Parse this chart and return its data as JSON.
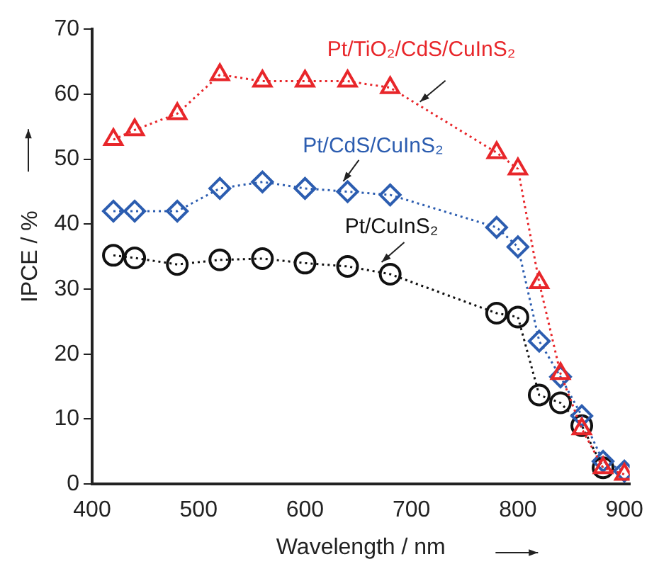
{
  "chart_data": {
    "type": "line",
    "xlabel": "Wavelength / nm",
    "ylabel": "IPCE / %",
    "x": [
      420,
      440,
      480,
      520,
      560,
      600,
      640,
      680,
      780,
      800,
      820,
      840,
      860,
      880,
      900
    ],
    "series": [
      {
        "name": "Pt/TiO₂/CdS/CuInS₂",
        "color": "#e8262a",
        "marker": "triangle",
        "values": [
          53,
          54.5,
          57,
          63,
          62,
          62,
          62,
          61,
          51,
          48.5,
          31,
          17,
          8.5,
          2.5,
          1.5
        ]
      },
      {
        "name": "Pt/CdS/CuInS₂",
        "color": "#2c5db0",
        "marker": "diamond",
        "values": [
          42,
          42,
          42,
          45.5,
          46.5,
          45.5,
          45,
          44.5,
          39.5,
          36.5,
          22,
          16.5,
          10.5,
          3.5,
          2
        ]
      },
      {
        "name": "Pt/CuInS₂",
        "color": "#111111",
        "marker": "circle",
        "values": [
          35.2,
          34.8,
          33.8,
          34.5,
          34.7,
          34,
          33.5,
          32.3,
          26.3,
          25.7,
          13.7,
          12.5,
          9,
          2.5,
          null
        ]
      }
    ],
    "xlim": [
      400,
      905
    ],
    "xticks": [
      400,
      500,
      600,
      700,
      800,
      900
    ],
    "ylim": [
      0,
      70
    ],
    "yticks": [
      0,
      10,
      20,
      30,
      40,
      50,
      60,
      70
    ],
    "grid": false,
    "legend": false,
    "line_style": "dotted"
  }
}
